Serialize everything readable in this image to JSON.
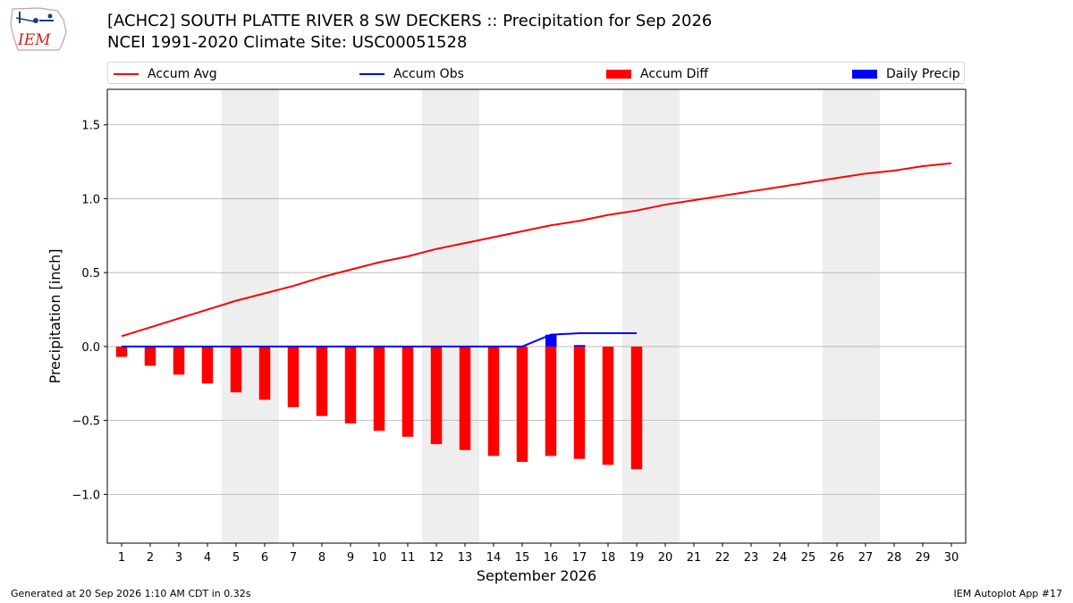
{
  "header": {
    "title_line1": "[ACHC2] SOUTH PLATTE RIVER 8 SW DECKERS :: Precipitation for Sep 2026",
    "title_line2": "NCEI 1991-2020 Climate Site: USC00051528",
    "logo_text": "IEM"
  },
  "legend": {
    "items": [
      {
        "label": "Accum Avg",
        "kind": "line",
        "color": "#ff0000"
      },
      {
        "label": "Accum Obs",
        "kind": "line",
        "color": "#0000ff"
      },
      {
        "label": "Accum Diff",
        "kind": "box",
        "color": "#ff0000"
      },
      {
        "label": "Daily Precip",
        "kind": "box",
        "color": "#0000ff"
      }
    ]
  },
  "footer": {
    "generated": "Generated at 20 Sep 2026 1:10 AM CDT in 0.32s",
    "app": "IEM Autoplot App #17"
  },
  "colors": {
    "avg": "#ff0000",
    "obs": "#0000ff",
    "diff": "#ff0000",
    "daily": "#0000ff",
    "weekend_band": "#eeeeee",
    "grid": "#b0b0b0"
  },
  "chart_data": {
    "type": "bar",
    "title": "[ACHC2] SOUTH PLATTE RIVER 8 SW DECKERS :: Precipitation for Sep 2026",
    "xlabel": "September 2026",
    "ylabel": "Precipitation [inch]",
    "xlim": [
      0.5,
      30.5
    ],
    "ylim": [
      -1.33,
      1.74
    ],
    "yticks": [
      -1.0,
      -0.5,
      0.0,
      0.5,
      1.0,
      1.5
    ],
    "ytick_labels": [
      "−1.0",
      "−0.5",
      "0.0",
      "0.5",
      "1.0",
      "1.5"
    ],
    "x_days": [
      1,
      2,
      3,
      4,
      5,
      6,
      7,
      8,
      9,
      10,
      11,
      12,
      13,
      14,
      15,
      16,
      17,
      18,
      19,
      20,
      21,
      22,
      23,
      24,
      25,
      26,
      27,
      28,
      29,
      30
    ],
    "grid": "horizontal",
    "legend_position": "top",
    "weekend_bands": [
      [
        4.5,
        6.5
      ],
      [
        11.5,
        13.5
      ],
      [
        18.5,
        20.5
      ],
      [
        25.5,
        27.5
      ]
    ],
    "series": [
      {
        "name": "Accum Avg",
        "kind": "line",
        "x": [
          1,
          2,
          3,
          4,
          5,
          6,
          7,
          8,
          9,
          10,
          11,
          12,
          13,
          14,
          15,
          16,
          17,
          18,
          19,
          20,
          21,
          22,
          23,
          24,
          25,
          26,
          27,
          28,
          29,
          30
        ],
        "values": [
          0.07,
          0.13,
          0.19,
          0.25,
          0.31,
          0.36,
          0.41,
          0.47,
          0.52,
          0.57,
          0.61,
          0.66,
          0.7,
          0.74,
          0.78,
          0.82,
          0.85,
          0.89,
          0.92,
          0.96,
          0.99,
          1.02,
          1.05,
          1.08,
          1.11,
          1.14,
          1.17,
          1.19,
          1.22,
          1.24
        ]
      },
      {
        "name": "Accum Obs",
        "kind": "line",
        "x": [
          1,
          2,
          3,
          4,
          5,
          6,
          7,
          8,
          9,
          10,
          11,
          12,
          13,
          14,
          15,
          16,
          17,
          18,
          19
        ],
        "values": [
          0,
          0,
          0,
          0,
          0,
          0,
          0,
          0,
          0,
          0,
          0,
          0,
          0,
          0,
          0,
          0.08,
          0.09,
          0.09,
          0.09
        ]
      },
      {
        "name": "Accum Diff",
        "kind": "bar",
        "x": [
          1,
          2,
          3,
          4,
          5,
          6,
          7,
          8,
          9,
          10,
          11,
          12,
          13,
          14,
          15,
          16,
          17,
          18,
          19
        ],
        "values": [
          -0.07,
          -0.13,
          -0.19,
          -0.25,
          -0.31,
          -0.36,
          -0.41,
          -0.47,
          -0.52,
          -0.57,
          -0.61,
          -0.66,
          -0.7,
          -0.74,
          -0.78,
          -0.74,
          -0.76,
          -0.8,
          -0.83
        ]
      },
      {
        "name": "Daily Precip",
        "kind": "bar",
        "x": [
          16,
          17
        ],
        "values": [
          0.08,
          0.01
        ]
      }
    ]
  }
}
